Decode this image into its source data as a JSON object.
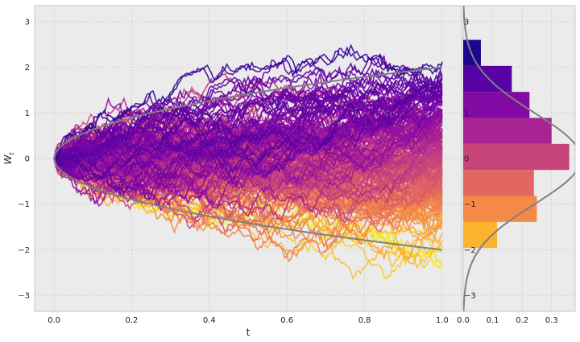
{
  "figure": {
    "background": "#ffffff",
    "axes_facecolor": "#ebebeb",
    "grid_color": "#c8c8c8",
    "curve_color": "#808080",
    "colormap": "plasma"
  },
  "chart_data": [
    {
      "type": "line",
      "title": "",
      "description_kind": "simulated Brownian motion paths W_t colored by terminal value",
      "xlabel": "t",
      "ylabel": "W_t",
      "xlim": [
        -0.05,
        1.05
      ],
      "ylim": [
        -3.35,
        3.35
      ],
      "xticks": [
        0.0,
        0.2,
        0.4,
        0.6,
        0.8,
        1.0
      ],
      "xtick_labels": [
        "0.0",
        "0.2",
        "0.4",
        "0.6",
        "0.8",
        "1.0"
      ],
      "yticks": [
        -3,
        -2,
        -1,
        0,
        1,
        2,
        3
      ],
      "ytick_labels": [
        "−3",
        "−2",
        "−1",
        "0",
        "1",
        "2",
        "3"
      ],
      "grid": true,
      "n_paths": 250,
      "steps": 400,
      "envelope": {
        "upper": "2*sqrt(t)",
        "lower": "-2*sqrt(t)"
      }
    },
    {
      "type": "bar",
      "orientation": "horizontal",
      "title": "",
      "xlim": [
        0,
        0.38
      ],
      "ylim": [
        -3.35,
        3.35
      ],
      "xticks": [
        0.0,
        0.1,
        0.2,
        0.3
      ],
      "xtick_labels": [
        "0.0",
        "0.1",
        "0.2",
        "0.3"
      ],
      "yticks": [
        -3,
        -2,
        -1,
        0,
        1,
        2,
        3
      ],
      "ytick_labels": [
        "−3",
        "−2",
        "−1",
        "0",
        "1",
        "2",
        "3"
      ],
      "grid": true,
      "bins": [
        {
          "lo": -3.1,
          "hi": -2.53,
          "value": 0.0
        },
        {
          "lo": -2.53,
          "hi": -1.96,
          "value": 0.0
        },
        {
          "lo": -1.96,
          "hi": -1.39,
          "value": 0.115
        },
        {
          "lo": -1.39,
          "hi": -0.82,
          "value": 0.25
        },
        {
          "lo": -0.82,
          "hi": -0.25,
          "value": 0.24
        },
        {
          "lo": -0.25,
          "hi": 0.32,
          "value": 0.36
        },
        {
          "lo": 0.32,
          "hi": 0.89,
          "value": 0.3
        },
        {
          "lo": 0.89,
          "hi": 1.46,
          "value": 0.225
        },
        {
          "lo": 1.46,
          "hi": 2.03,
          "value": 0.165
        },
        {
          "lo": 2.03,
          "hi": 2.6,
          "value": 0.06
        }
      ],
      "overlay_curve": "normal pdf, mean 0, std 1"
    }
  ]
}
